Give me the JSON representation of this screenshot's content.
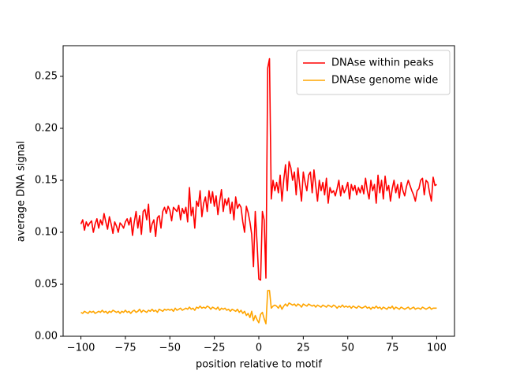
{
  "chart_data": {
    "type": "line",
    "xlabel": "position relative to motif",
    "ylabel": "average DNA signal",
    "x": [
      -100,
      -99,
      -98,
      -97,
      -96,
      -95,
      -94,
      -93,
      -92,
      -91,
      -90,
      -89,
      -88,
      -87,
      -86,
      -85,
      -84,
      -83,
      -82,
      -81,
      -80,
      -79,
      -78,
      -77,
      -76,
      -75,
      -74,
      -73,
      -72,
      -71,
      -70,
      -69,
      -68,
      -67,
      -66,
      -65,
      -64,
      -63,
      -62,
      -61,
      -60,
      -59,
      -58,
      -57,
      -56,
      -55,
      -54,
      -53,
      -52,
      -51,
      -50,
      -49,
      -48,
      -47,
      -46,
      -45,
      -44,
      -43,
      -42,
      -41,
      -40,
      -39,
      -38,
      -37,
      -36,
      -35,
      -34,
      -33,
      -32,
      -31,
      -30,
      -29,
      -28,
      -27,
      -26,
      -25,
      -24,
      -23,
      -22,
      -21,
      -20,
      -19,
      -18,
      -17,
      -16,
      -15,
      -14,
      -13,
      -12,
      -11,
      -10,
      -9,
      -8,
      -7,
      -6,
      -5,
      -4,
      -3,
      -2,
      -1,
      0,
      1,
      2,
      3,
      4,
      5,
      6,
      7,
      8,
      9,
      10,
      11,
      12,
      13,
      14,
      15,
      16,
      17,
      18,
      19,
      20,
      21,
      22,
      23,
      24,
      25,
      26,
      27,
      28,
      29,
      30,
      31,
      32,
      33,
      34,
      35,
      36,
      37,
      38,
      39,
      40,
      41,
      42,
      43,
      44,
      45,
      46,
      47,
      48,
      49,
      50,
      51,
      52,
      53,
      54,
      55,
      56,
      57,
      58,
      59,
      60,
      61,
      62,
      63,
      64,
      65,
      66,
      67,
      68,
      69,
      70,
      71,
      72,
      73,
      74,
      75,
      76,
      77,
      78,
      79,
      80,
      81,
      82,
      83,
      84,
      85,
      86,
      87,
      88,
      89,
      90,
      91,
      92,
      93,
      94,
      95,
      96,
      97,
      98,
      99,
      100
    ],
    "series": [
      {
        "name": "DNAse within peaks",
        "color": "#ff0000",
        "values": [
          0.108,
          0.112,
          0.102,
          0.11,
          0.106,
          0.109,
          0.111,
          0.1,
          0.108,
          0.113,
          0.104,
          0.112,
          0.107,
          0.118,
          0.11,
          0.103,
          0.115,
          0.108,
          0.099,
          0.11,
          0.106,
          0.1,
          0.109,
          0.107,
          0.104,
          0.11,
          0.113,
          0.107,
          0.114,
          0.097,
          0.11,
          0.12,
          0.104,
          0.116,
          0.098,
          0.12,
          0.122,
          0.112,
          0.127,
          0.1,
          0.108,
          0.112,
          0.096,
          0.114,
          0.116,
          0.104,
          0.12,
          0.124,
          0.118,
          0.125,
          0.121,
          0.111,
          0.124,
          0.122,
          0.12,
          0.126,
          0.112,
          0.123,
          0.118,
          0.124,
          0.11,
          0.143,
          0.116,
          0.124,
          0.104,
          0.13,
          0.125,
          0.14,
          0.115,
          0.128,
          0.134,
          0.12,
          0.14,
          0.128,
          0.139,
          0.125,
          0.135,
          0.117,
          0.13,
          0.141,
          0.12,
          0.132,
          0.126,
          0.133,
          0.118,
          0.129,
          0.112,
          0.134,
          0.123,
          0.127,
          0.124,
          0.11,
          0.1,
          0.125,
          0.119,
          0.11,
          0.098,
          0.067,
          0.12,
          0.09,
          0.055,
          0.054,
          0.12,
          0.112,
          0.056,
          0.258,
          0.267,
          0.132,
          0.15,
          0.14,
          0.148,
          0.138,
          0.155,
          0.13,
          0.15,
          0.165,
          0.14,
          0.168,
          0.162,
          0.15,
          0.158,
          0.136,
          0.162,
          0.145,
          0.13,
          0.158,
          0.148,
          0.14,
          0.155,
          0.158,
          0.138,
          0.16,
          0.145,
          0.13,
          0.15,
          0.14,
          0.148,
          0.136,
          0.152,
          0.128,
          0.143,
          0.138,
          0.14,
          0.135,
          0.142,
          0.15,
          0.135,
          0.145,
          0.138,
          0.142,
          0.148,
          0.132,
          0.146,
          0.14,
          0.145,
          0.136,
          0.143,
          0.138,
          0.145,
          0.137,
          0.152,
          0.14,
          0.132,
          0.15,
          0.14,
          0.146,
          0.128,
          0.155,
          0.138,
          0.15,
          0.132,
          0.154,
          0.14,
          0.145,
          0.13,
          0.142,
          0.15,
          0.138,
          0.146,
          0.133,
          0.148,
          0.14,
          0.135,
          0.144,
          0.15,
          0.145,
          0.14,
          0.136,
          0.13,
          0.14,
          0.142,
          0.15,
          0.152,
          0.136,
          0.15,
          0.148,
          0.138,
          0.13,
          0.153,
          0.145,
          0.146
        ]
      },
      {
        "name": "DNAse genome wide",
        "color": "#ffa500",
        "values": [
          0.023,
          0.022,
          0.024,
          0.023,
          0.022,
          0.024,
          0.023,
          0.024,
          0.022,
          0.023,
          0.024,
          0.023,
          0.025,
          0.023,
          0.024,
          0.022,
          0.024,
          0.023,
          0.025,
          0.024,
          0.023,
          0.024,
          0.022,
          0.024,
          0.023,
          0.025,
          0.023,
          0.024,
          0.022,
          0.024,
          0.025,
          0.023,
          0.024,
          0.026,
          0.023,
          0.025,
          0.024,
          0.023,
          0.025,
          0.024,
          0.026,
          0.024,
          0.025,
          0.023,
          0.026,
          0.025,
          0.024,
          0.026,
          0.025,
          0.026,
          0.025,
          0.026,
          0.024,
          0.027,
          0.025,
          0.026,
          0.027,
          0.025,
          0.026,
          0.027,
          0.026,
          0.028,
          0.026,
          0.027,
          0.025,
          0.028,
          0.027,
          0.029,
          0.027,
          0.028,
          0.027,
          0.029,
          0.028,
          0.026,
          0.028,
          0.027,
          0.026,
          0.028,
          0.025,
          0.027,
          0.026,
          0.027,
          0.025,
          0.026,
          0.024,
          0.026,
          0.025,
          0.024,
          0.026,
          0.023,
          0.025,
          0.022,
          0.024,
          0.02,
          0.022,
          0.018,
          0.024,
          0.015,
          0.02,
          0.016,
          0.013,
          0.021,
          0.023,
          0.017,
          0.012,
          0.044,
          0.044,
          0.027,
          0.029,
          0.03,
          0.029,
          0.027,
          0.03,
          0.026,
          0.029,
          0.031,
          0.029,
          0.032,
          0.031,
          0.03,
          0.031,
          0.029,
          0.031,
          0.03,
          0.028,
          0.031,
          0.03,
          0.029,
          0.031,
          0.03,
          0.029,
          0.03,
          0.028,
          0.03,
          0.029,
          0.028,
          0.03,
          0.029,
          0.028,
          0.03,
          0.029,
          0.028,
          0.03,
          0.029,
          0.027,
          0.029,
          0.028,
          0.03,
          0.028,
          0.029,
          0.028,
          0.029,
          0.027,
          0.029,
          0.028,
          0.027,
          0.029,
          0.028,
          0.027,
          0.028,
          0.029,
          0.027,
          0.028,
          0.026,
          0.028,
          0.027,
          0.029,
          0.027,
          0.028,
          0.026,
          0.028,
          0.027,
          0.026,
          0.028,
          0.027,
          0.029,
          0.026,
          0.028,
          0.027,
          0.026,
          0.028,
          0.027,
          0.026,
          0.027,
          0.028,
          0.026,
          0.027,
          0.028,
          0.026,
          0.027,
          0.027,
          0.026,
          0.028,
          0.027,
          0.026,
          0.027,
          0.028,
          0.026,
          0.027,
          0.027,
          0.027
        ]
      }
    ],
    "xlim": [
      -110,
      110
    ],
    "xticks": [
      {
        "value": -100,
        "label": "−100"
      },
      {
        "value": -75,
        "label": "−75"
      },
      {
        "value": -50,
        "label": "−50"
      },
      {
        "value": -25,
        "label": "−25"
      },
      0,
      25,
      50,
      75,
      100
    ],
    "ylim": [
      0,
      0.2795
    ],
    "yticks": [
      {
        "value": 0,
        "label": "0.00"
      },
      0.05,
      {
        "value": 0.1,
        "label": "0.10"
      },
      0.15,
      {
        "value": 0.2,
        "label": "0.20"
      },
      0.25
    ],
    "legend": "upper right"
  }
}
